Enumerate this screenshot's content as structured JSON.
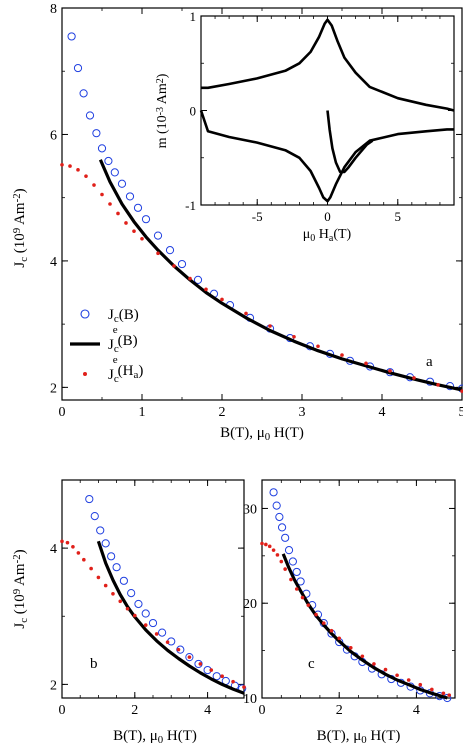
{
  "chart_data": [
    {
      "type": "scatter",
      "panel_label": "a",
      "xlabel": "B(T), μ0 H(T)",
      "ylabel": "Jc (10^9 Am^-2)",
      "xlim": [
        0,
        5
      ],
      "ylim": [
        1.8,
        8
      ],
      "xticks": [
        "0",
        "1",
        "2",
        "3",
        "4",
        "5"
      ],
      "yticks": [
        "2",
        "4",
        "6",
        "8"
      ],
      "legend": {
        "placement": "left-middle",
        "entries": [
          {
            "sym": "J",
            "sub": "c",
            "sup": "",
            "tail": "(B)",
            "style": "open-circle"
          },
          {
            "sym": "J",
            "sub": "c",
            "sup": "e",
            "tail": "(B)",
            "style": "thick-line"
          },
          {
            "sym": "J",
            "sub": "c",
            "sup": "e",
            "tail": "(H",
            "tail_sub": "a",
            "tail_end": ")",
            "style": "red-dot"
          }
        ]
      },
      "series": [
        {
          "key": "Jc(B)",
          "style": "open-circle",
          "color": "#1f3fe0",
          "x": [
            0.12,
            0.2,
            0.27,
            0.35,
            0.43,
            0.5,
            0.58,
            0.66,
            0.75,
            0.85,
            0.95,
            1.05,
            1.2,
            1.35,
            1.5,
            1.7,
            1.9,
            2.1,
            2.35,
            2.6,
            2.85,
            3.1,
            3.35,
            3.6,
            3.85,
            4.1,
            4.35,
            4.6,
            4.85,
            5.0
          ],
          "y": [
            7.55,
            7.05,
            6.65,
            6.3,
            6.02,
            5.78,
            5.58,
            5.4,
            5.22,
            5.02,
            4.84,
            4.66,
            4.4,
            4.17,
            3.95,
            3.7,
            3.48,
            3.3,
            3.1,
            2.93,
            2.78,
            2.65,
            2.53,
            2.42,
            2.33,
            2.24,
            2.16,
            2.09,
            2.02,
            1.98
          ]
        },
        {
          "key": "Jc^e(B)",
          "style": "thick-line",
          "color": "#000000",
          "x": [
            0.48,
            0.6,
            0.75,
            0.9,
            1.05,
            1.2,
            1.4,
            1.6,
            1.8,
            2.0,
            2.3,
            2.6,
            2.9,
            3.2,
            3.5,
            3.8,
            4.1,
            4.4,
            4.7,
            5.0
          ],
          "y": [
            5.6,
            5.25,
            4.9,
            4.62,
            4.38,
            4.17,
            3.92,
            3.7,
            3.5,
            3.33,
            3.1,
            2.9,
            2.73,
            2.58,
            2.45,
            2.34,
            2.23,
            2.13,
            2.04,
            1.96
          ]
        },
        {
          "key": "Jc^e(Ha)",
          "style": "red-dot",
          "color": "#e0201a",
          "x": [
            0.0,
            0.1,
            0.2,
            0.3,
            0.4,
            0.5,
            0.6,
            0.7,
            0.8,
            0.9,
            1.0,
            1.2,
            1.4,
            1.6,
            1.8,
            2.0,
            2.3,
            2.6,
            2.9,
            3.2,
            3.5,
            3.8,
            4.1,
            4.4,
            4.7,
            5.0
          ],
          "y": [
            5.52,
            5.5,
            5.44,
            5.34,
            5.2,
            5.05,
            4.9,
            4.75,
            4.6,
            4.47,
            4.35,
            4.12,
            3.92,
            3.72,
            3.55,
            3.39,
            3.17,
            2.97,
            2.8,
            2.65,
            2.51,
            2.38,
            2.26,
            2.15,
            2.04,
            1.94
          ]
        }
      ]
    },
    {
      "type": "line",
      "panel_label": "inset",
      "xlabel": "μ0 Ha(T)",
      "ylabel": "m (10^-3 Am^2)",
      "xlim": [
        -9,
        9
      ],
      "ylim": [
        -1,
        1
      ],
      "xticks": [
        "-5",
        "0",
        "5"
      ],
      "yticks": [
        "-1",
        "0",
        "1"
      ],
      "series": [
        {
          "key": "upper-branch",
          "color": "#000000",
          "x": [
            -9,
            -8.5,
            -7,
            -5,
            -3,
            -2,
            -1.2,
            -0.6,
            -0.2,
            0,
            0.3,
            0.7,
            1.2,
            2,
            3,
            5,
            7,
            8.5,
            9
          ],
          "y": [
            0.24,
            0.24,
            0.28,
            0.34,
            0.42,
            0.5,
            0.62,
            0.78,
            0.92,
            0.96,
            0.9,
            0.74,
            0.56,
            0.4,
            0.25,
            0.13,
            0.06,
            0.02,
            0.0
          ]
        },
        {
          "key": "lower-branch",
          "color": "#000000",
          "x": [
            -9,
            -8.5,
            -7,
            -5,
            -3,
            -2,
            -1.2,
            -0.6,
            -0.3,
            0,
            0.2,
            0.6,
            1.2,
            2,
            3,
            5,
            7,
            8.5,
            9
          ],
          "y": [
            0.0,
            -0.22,
            -0.28,
            -0.34,
            -0.42,
            -0.5,
            -0.64,
            -0.82,
            -0.92,
            -0.96,
            -0.92,
            -0.78,
            -0.6,
            -0.44,
            -0.32,
            -0.25,
            -0.22,
            -0.2,
            -0.2
          ]
        },
        {
          "key": "virgin-curve",
          "color": "#000000",
          "x": [
            0,
            0.15,
            0.35,
            0.6,
            0.9,
            1.2,
            1.5,
            2.0,
            2.8,
            3.2
          ],
          "y": [
            0.0,
            -0.2,
            -0.4,
            -0.55,
            -0.65,
            -0.65,
            -0.6,
            -0.5,
            -0.36,
            -0.32
          ]
        }
      ]
    },
    {
      "type": "scatter",
      "panel_label": "b",
      "xlabel": "B(T), μ0 H(T)",
      "ylabel": "Jc (10^9 Am^-2)",
      "xlim": [
        0,
        5
      ],
      "ylim": [
        1.8,
        5
      ],
      "xticks": [
        "0",
        "2",
        "4"
      ],
      "yticks": [
        "2",
        "4"
      ],
      "series": [
        {
          "key": "Jc(B)",
          "style": "open-circle",
          "color": "#1f3fe0",
          "x": [
            0.75,
            0.9,
            1.05,
            1.2,
            1.35,
            1.5,
            1.7,
            1.9,
            2.1,
            2.3,
            2.5,
            2.75,
            3.0,
            3.25,
            3.5,
            3.75,
            4.0,
            4.25,
            4.5,
            4.75,
            4.95
          ],
          "y": [
            4.72,
            4.47,
            4.26,
            4.07,
            3.88,
            3.72,
            3.52,
            3.34,
            3.18,
            3.04,
            2.9,
            2.76,
            2.63,
            2.51,
            2.4,
            2.3,
            2.21,
            2.12,
            2.05,
            1.98,
            1.94
          ]
        },
        {
          "key": "Jc^e(B)",
          "style": "thick-line",
          "color": "#000000",
          "x": [
            1.0,
            1.2,
            1.4,
            1.6,
            1.8,
            2.0,
            2.3,
            2.6,
            2.9,
            3.2,
            3.5,
            3.8,
            4.1,
            4.4,
            4.7,
            5.0
          ],
          "y": [
            4.1,
            3.78,
            3.53,
            3.32,
            3.14,
            2.99,
            2.8,
            2.64,
            2.5,
            2.38,
            2.27,
            2.17,
            2.08,
            2.0,
            1.93,
            1.87
          ]
        },
        {
          "key": "Jc^e(Ha)",
          "style": "red-dot",
          "color": "#e0201a",
          "x": [
            0.0,
            0.15,
            0.3,
            0.45,
            0.6,
            0.8,
            1.0,
            1.2,
            1.4,
            1.6,
            1.8,
            2.0,
            2.3,
            2.6,
            2.9,
            3.2,
            3.5,
            3.8,
            4.1,
            4.4,
            4.7,
            5.0
          ],
          "y": [
            4.1,
            4.08,
            4.02,
            3.93,
            3.83,
            3.7,
            3.57,
            3.45,
            3.33,
            3.22,
            3.11,
            3.01,
            2.87,
            2.74,
            2.62,
            2.51,
            2.4,
            2.3,
            2.21,
            2.12,
            2.04,
            1.96
          ]
        }
      ]
    },
    {
      "type": "scatter",
      "panel_label": "c",
      "xlabel": "B(T), μ0 H(T)",
      "yaxis_side": "left",
      "xlim": [
        0,
        5
      ],
      "ylim": [
        10,
        33
      ],
      "xticks": [
        "0",
        "2",
        "4"
      ],
      "yticks": [
        "10",
        "20",
        "30"
      ],
      "series": [
        {
          "key": "Jc(B)",
          "style": "open-circle",
          "color": "#1f3fe0",
          "x": [
            0.3,
            0.38,
            0.45,
            0.52,
            0.6,
            0.7,
            0.8,
            0.9,
            1.0,
            1.15,
            1.3,
            1.45,
            1.6,
            1.8,
            2.0,
            2.2,
            2.4,
            2.6,
            2.85,
            3.1,
            3.35,
            3.6,
            3.85,
            4.1,
            4.35,
            4.6,
            4.8
          ],
          "y": [
            31.7,
            30.3,
            29.1,
            28.0,
            26.9,
            25.6,
            24.4,
            23.3,
            22.3,
            21.0,
            19.8,
            18.8,
            17.9,
            16.8,
            15.9,
            15.1,
            14.4,
            13.8,
            13.1,
            12.5,
            12.0,
            11.6,
            11.2,
            10.8,
            10.5,
            10.2,
            10.0
          ]
        },
        {
          "key": "Jc^e(B)",
          "style": "thick-line",
          "color": "#000000",
          "x": [
            0.55,
            0.7,
            0.85,
            1.0,
            1.2,
            1.4,
            1.6,
            1.8,
            2.0,
            2.3,
            2.6,
            2.9,
            3.2,
            3.5,
            3.8,
            4.1,
            4.4,
            4.8
          ],
          "y": [
            25.2,
            23.7,
            22.4,
            21.3,
            19.9,
            18.7,
            17.7,
            16.8,
            16.0,
            14.9,
            14.0,
            13.2,
            12.5,
            11.9,
            11.4,
            10.9,
            10.5,
            10.0
          ]
        },
        {
          "key": "Jc^e(Ha)",
          "style": "red-dot",
          "color": "#e0201a",
          "x": [
            0.0,
            0.1,
            0.2,
            0.3,
            0.4,
            0.5,
            0.6,
            0.75,
            0.9,
            1.05,
            1.2,
            1.4,
            1.6,
            1.8,
            2.0,
            2.3,
            2.6,
            2.9,
            3.2,
            3.5,
            3.8,
            4.1,
            4.4,
            4.7,
            4.85
          ],
          "y": [
            26.3,
            26.2,
            26.0,
            25.6,
            25.1,
            24.4,
            23.6,
            22.5,
            21.5,
            20.6,
            19.8,
            18.8,
            17.9,
            17.1,
            16.3,
            15.3,
            14.4,
            13.6,
            13.0,
            12.4,
            11.9,
            11.4,
            10.9,
            10.5,
            10.3
          ]
        }
      ]
    }
  ]
}
